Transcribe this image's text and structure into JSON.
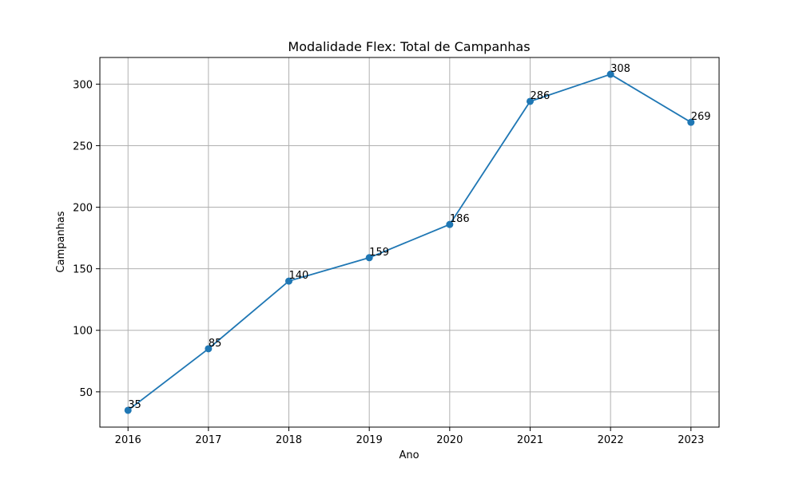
{
  "chart_data": {
    "type": "line",
    "title": "Modalidade Flex: Total de Campanhas",
    "xlabel": "Ano",
    "ylabel": "Campanhas",
    "x": [
      2016,
      2017,
      2018,
      2019,
      2020,
      2021,
      2022,
      2023
    ],
    "series": [
      {
        "values": [
          35,
          85,
          140,
          159,
          186,
          286,
          308,
          269
        ]
      }
    ],
    "data_labels": [
      "35",
      "85",
      "140",
      "159",
      "186",
      "286",
      "308",
      "269"
    ],
    "x_ticks": [
      "2016",
      "2017",
      "2018",
      "2019",
      "2020",
      "2021",
      "2022",
      "2023"
    ],
    "y_ticks": [
      "50",
      "100",
      "150",
      "200",
      "250",
      "300"
    ],
    "y_tick_values": [
      50,
      100,
      150,
      200,
      250,
      300
    ],
    "xlim": [
      2015.65,
      2023.35
    ],
    "ylim": [
      21.35,
      321.65
    ],
    "grid": true,
    "line_color": "#1f77b4",
    "marker": "circle"
  }
}
